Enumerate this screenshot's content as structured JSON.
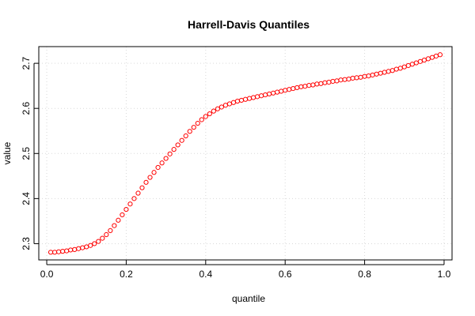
{
  "chart_data": {
    "type": "scatter",
    "title": "Harrell-Davis Quantiles",
    "xlabel": "quantile",
    "ylabel": "value",
    "xlim": [
      -0.02,
      1.02
    ],
    "ylim": [
      2.264,
      2.737
    ],
    "xticks": [
      0,
      0.2,
      0.4,
      0.6,
      0.8,
      1
    ],
    "xtick_labels": [
      "0.0",
      "0.2",
      "0.4",
      "0.6",
      "0.8",
      "1.0"
    ],
    "yticks": [
      2.3,
      2.4,
      2.5,
      2.6,
      2.7
    ],
    "ytick_labels": [
      "2.3",
      "2.4",
      "2.5",
      "2.6",
      "2.7"
    ],
    "grid": true,
    "marker": "open-circle",
    "marker_color": "#ff0000",
    "series": [
      {
        "x": [
          0.01,
          0.02,
          0.03,
          0.04,
          0.05,
          0.06,
          0.07,
          0.08,
          0.09,
          0.1,
          0.11,
          0.12,
          0.13,
          0.14,
          0.15,
          0.16,
          0.17,
          0.18,
          0.19,
          0.2,
          0.21,
          0.22,
          0.23,
          0.24,
          0.25,
          0.26,
          0.27,
          0.28,
          0.29,
          0.3,
          0.31,
          0.32,
          0.33,
          0.34,
          0.35,
          0.36,
          0.37,
          0.38,
          0.39,
          0.4,
          0.41,
          0.42,
          0.43,
          0.44,
          0.45,
          0.46,
          0.47,
          0.48,
          0.49,
          0.5,
          0.51,
          0.52,
          0.53,
          0.54,
          0.55,
          0.56,
          0.57,
          0.58,
          0.59,
          0.6,
          0.61,
          0.62,
          0.63,
          0.64,
          0.65,
          0.66,
          0.67,
          0.68,
          0.69,
          0.7,
          0.71,
          0.72,
          0.73,
          0.74,
          0.75,
          0.76,
          0.77,
          0.78,
          0.79,
          0.8,
          0.81,
          0.82,
          0.83,
          0.84,
          0.85,
          0.86,
          0.87,
          0.88,
          0.89,
          0.9,
          0.91,
          0.92,
          0.93,
          0.94,
          0.95,
          0.96,
          0.97,
          0.98,
          0.99
        ],
        "y": [
          2.281,
          2.281,
          2.282,
          2.283,
          2.284,
          2.286,
          2.287,
          2.289,
          2.291,
          2.293,
          2.296,
          2.3,
          2.305,
          2.312,
          2.32,
          2.329,
          2.34,
          2.352,
          2.364,
          2.376,
          2.388,
          2.4,
          2.412,
          2.424,
          2.436,
          2.447,
          2.458,
          2.469,
          2.479,
          2.489,
          2.499,
          2.509,
          2.519,
          2.529,
          2.539,
          2.549,
          2.558,
          2.567,
          2.575,
          2.582,
          2.588,
          2.594,
          2.599,
          2.603,
          2.607,
          2.61,
          2.613,
          2.616,
          2.618,
          2.62,
          2.622,
          2.624,
          2.626,
          2.628,
          2.63,
          2.632,
          2.634,
          2.636,
          2.638,
          2.64,
          2.642,
          2.644,
          2.646,
          2.648,
          2.649,
          2.651,
          2.652,
          2.654,
          2.655,
          2.657,
          2.658,
          2.66,
          2.661,
          2.663,
          2.664,
          2.665,
          2.667,
          2.668,
          2.669,
          2.671,
          2.672,
          2.674,
          2.676,
          2.678,
          2.68,
          2.682,
          2.684,
          2.687,
          2.689,
          2.692,
          2.695,
          2.698,
          2.701,
          2.704,
          2.707,
          2.71,
          2.713,
          2.716,
          2.719
        ]
      }
    ]
  }
}
